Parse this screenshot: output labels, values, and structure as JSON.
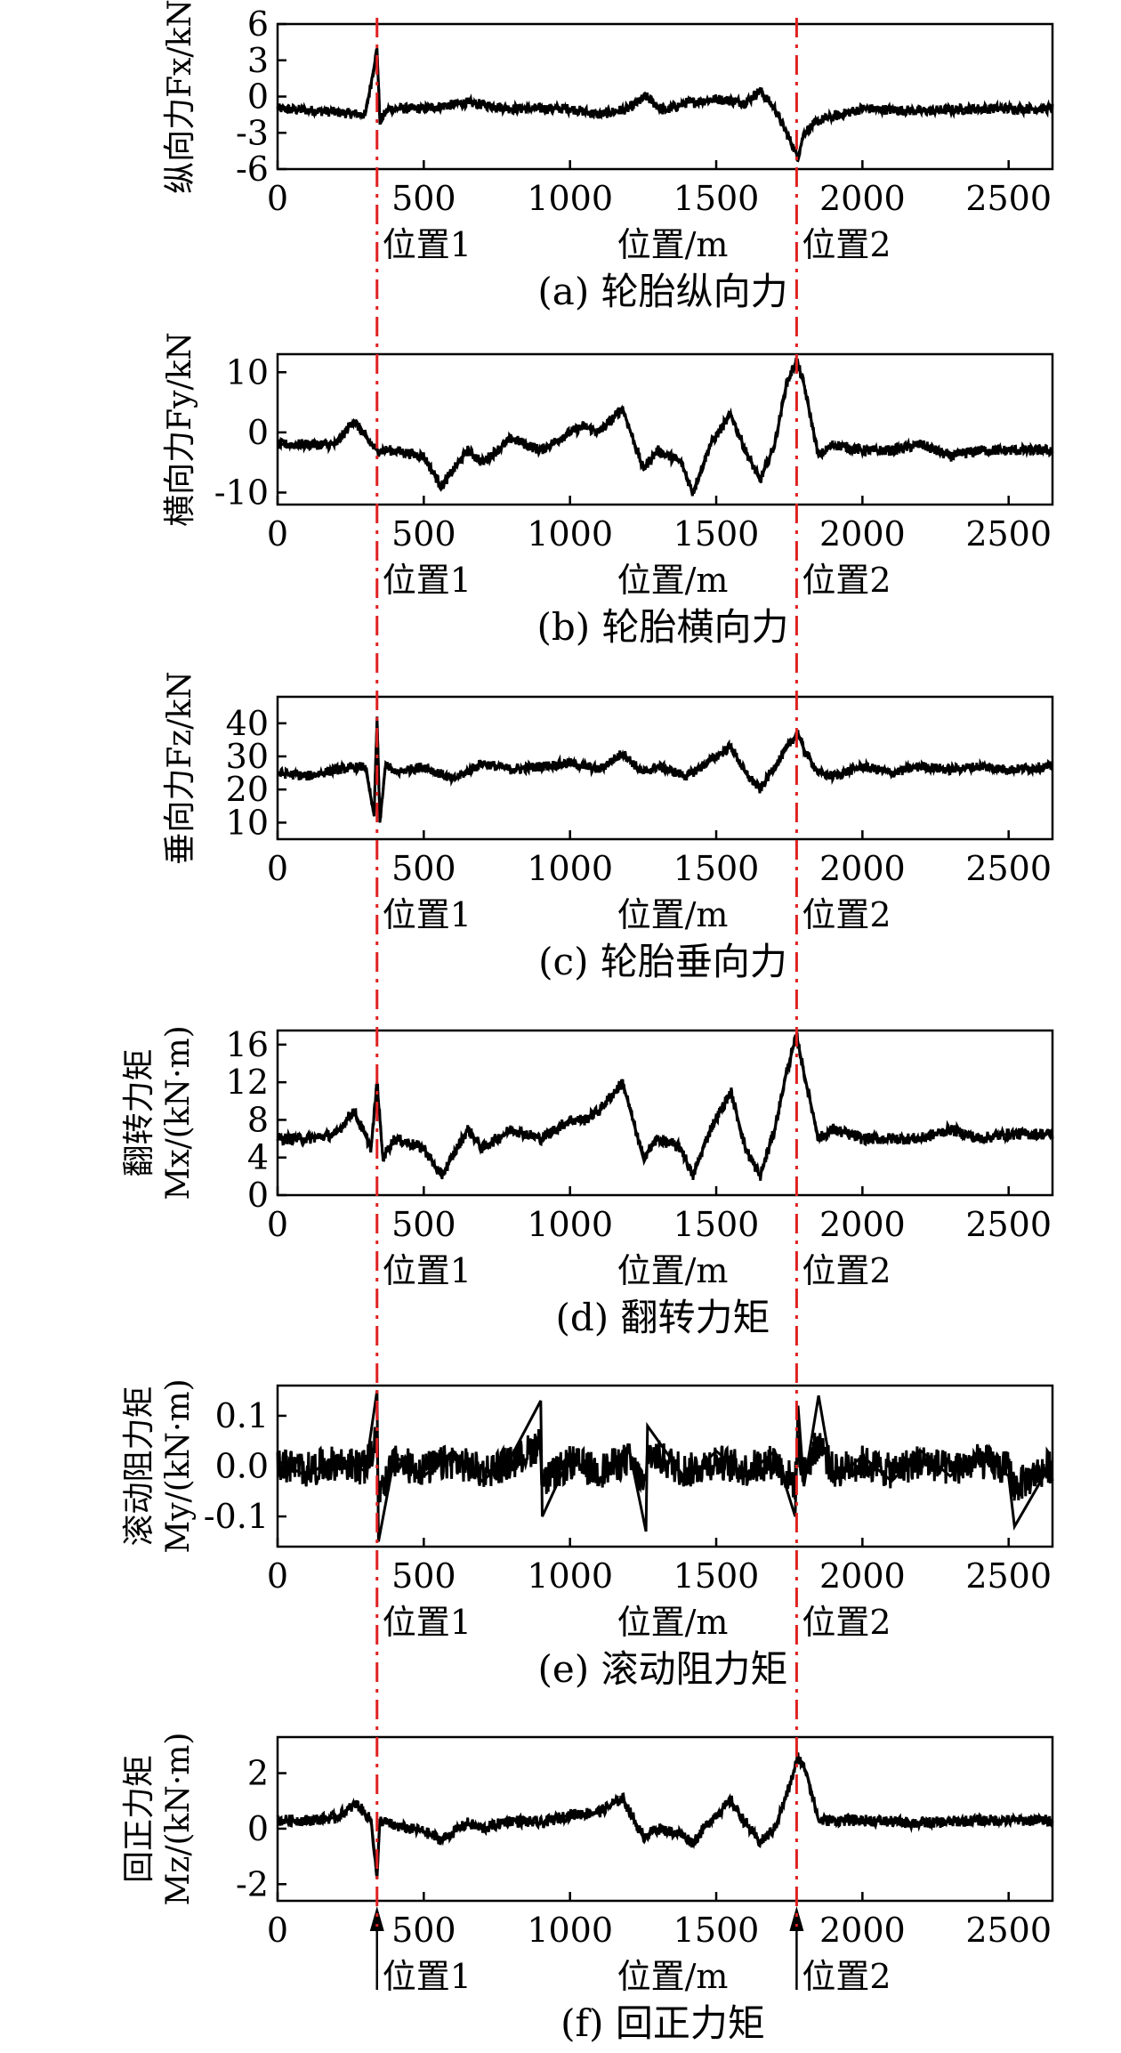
{
  "chart_data": [
    {
      "type": "line",
      "id": "a",
      "caption": "(a) 轮胎纵向力",
      "ylabel_lines": [
        "纵向力Fx/kN"
      ],
      "xlabel": "位置/m",
      "marker_labels": [
        "位置1",
        "位置2"
      ],
      "markers_x": [
        340,
        1775
      ],
      "xlim": [
        0,
        2650
      ],
      "ylim": [
        -6,
        6
      ],
      "xticks": [
        0,
        500,
        1000,
        1500,
        2000,
        2500
      ],
      "yticks": [
        6,
        3,
        0,
        -3,
        -6
      ],
      "series": [
        {
          "x": [
            0,
            150,
            300,
            330,
            340,
            350,
            380,
            500,
            650,
            800,
            900,
            1000,
            1100,
            1200,
            1260,
            1320,
            1400,
            1500,
            1600,
            1650,
            1700,
            1760,
            1780,
            1800,
            1850,
            2000,
            2200,
            2400,
            2650
          ],
          "y": [
            -1,
            -1.2,
            -1.5,
            2.5,
            4,
            -2,
            -1,
            -1,
            -0.5,
            -1,
            -1,
            -1,
            -1.5,
            -1,
            0,
            -1.2,
            -0.5,
            -0.2,
            -0.5,
            0.5,
            -1,
            -4,
            -5,
            -3,
            -2,
            -1,
            -1.2,
            -1,
            -1
          ]
        }
      ]
    },
    {
      "type": "line",
      "id": "b",
      "caption": "(b) 轮胎横向力",
      "ylabel_lines": [
        "横向力Fy/kN"
      ],
      "xlabel": "位置/m",
      "marker_labels": [
        "位置1",
        "位置2"
      ],
      "markers_x": [
        340,
        1775
      ],
      "xlim": [
        0,
        2650
      ],
      "ylim": [
        -12,
        13
      ],
      "xticks": [
        0,
        500,
        1000,
        1500,
        2000,
        2500
      ],
      "yticks": [
        10,
        0,
        -10
      ],
      "series": [
        {
          "x": [
            0,
            100,
            200,
            260,
            320,
            340,
            400,
            500,
            560,
            650,
            700,
            800,
            900,
            1000,
            1050,
            1100,
            1180,
            1250,
            1300,
            1380,
            1420,
            1480,
            1550,
            1600,
            1650,
            1700,
            1740,
            1775,
            1800,
            1850,
            1900,
            2000,
            2100,
            2200,
            2300,
            2400,
            2500,
            2650
          ],
          "y": [
            -2,
            -2,
            -2,
            2,
            -2,
            -3,
            -3,
            -4,
            -9,
            -3,
            -5,
            -1,
            -3,
            0,
            1,
            0,
            4,
            -6,
            -3,
            -5,
            -10,
            -2,
            3,
            -3,
            -8,
            -2,
            8,
            12,
            8,
            -4,
            -2,
            -3,
            -3,
            -2,
            -4,
            -3,
            -3,
            -3
          ]
        }
      ]
    },
    {
      "type": "line",
      "id": "c",
      "caption": "(c) 轮胎垂向力",
      "ylabel_lines": [
        "垂向力Fz/kN"
      ],
      "xlabel": "位置/m",
      "marker_labels": [
        "位置1",
        "位置2"
      ],
      "markers_x": [
        340,
        1775
      ],
      "xlim": [
        0,
        2650
      ],
      "ylim": [
        5,
        48
      ],
      "xticks": [
        0,
        500,
        1000,
        1500,
        2000,
        2500
      ],
      "yticks": [
        40,
        30,
        20,
        10
      ],
      "series": [
        {
          "x": [
            0,
            100,
            200,
            300,
            330,
            340,
            350,
            370,
            400,
            500,
            600,
            700,
            800,
            900,
            1000,
            1100,
            1180,
            1250,
            1300,
            1400,
            1500,
            1550,
            1600,
            1650,
            1700,
            1760,
            1780,
            1800,
            1850,
            1900,
            2000,
            2100,
            2200,
            2300,
            2400,
            2500,
            2650
          ],
          "y": [
            25,
            24,
            26,
            27,
            12,
            42,
            10,
            28,
            25,
            27,
            23,
            28,
            26,
            27,
            28,
            26,
            31,
            25,
            27,
            24,
            30,
            33,
            25,
            20,
            27,
            35,
            37,
            32,
            25,
            24,
            27,
            25,
            27,
            26,
            27,
            26,
            27
          ]
        }
      ]
    },
    {
      "type": "line",
      "id": "d",
      "caption": "(d) 翻转力矩",
      "ylabel_lines": [
        "翻转力矩",
        "Mx/(kN·m)"
      ],
      "xlabel": "位置/m",
      "marker_labels": [
        "位置1",
        "位置2"
      ],
      "markers_x": [
        340,
        1775
      ],
      "xlim": [
        0,
        2650
      ],
      "ylim": [
        0,
        17.5
      ],
      "xticks": [
        0,
        500,
        1000,
        1500,
        2000,
        2500
      ],
      "yticks": [
        16,
        12,
        8,
        4,
        0
      ],
      "series": [
        {
          "x": [
            0,
            100,
            200,
            260,
            320,
            340,
            360,
            400,
            500,
            560,
            650,
            700,
            800,
            900,
            1000,
            1050,
            1100,
            1180,
            1250,
            1300,
            1380,
            1420,
            1480,
            1550,
            1600,
            1650,
            1700,
            1740,
            1775,
            1800,
            1850,
            1900,
            2000,
            2100,
            2200,
            2300,
            2400,
            2500,
            2650
          ],
          "y": [
            6,
            6,
            6.5,
            9,
            5,
            12,
            4,
            6,
            5,
            2,
            7,
            5,
            7,
            6,
            8,
            8,
            9,
            12,
            4,
            6,
            5,
            2,
            7,
            11,
            5,
            2,
            7,
            13,
            17,
            13,
            6,
            7,
            6,
            6,
            6,
            7,
            6,
            6.5,
            6.5
          ]
        }
      ]
    },
    {
      "type": "line",
      "id": "e",
      "caption": "(e) 滚动阻力矩",
      "ylabel_lines": [
        "滚动阻力矩",
        "My/(kN·m)"
      ],
      "xlabel": "位置/m",
      "marker_labels": [
        "位置1",
        "位置2"
      ],
      "markers_x": [
        340,
        1775
      ],
      "xlim": [
        0,
        2650
      ],
      "ylim": [
        -0.16,
        0.16
      ],
      "xticks": [
        0,
        500,
        1000,
        1500,
        2000,
        2500
      ],
      "yticks": [
        0.1,
        0.0,
        -0.1
      ],
      "ytick_format": "1",
      "series": [
        {
          "x": [
            0,
            100,
            200,
            300,
            340,
            345,
            400,
            500,
            600,
            700,
            800,
            900,
            905,
            1000,
            1100,
            1200,
            1260,
            1265,
            1400,
            1500,
            1600,
            1700,
            1770,
            1780,
            1800,
            1850,
            1900,
            2000,
            2100,
            2200,
            2300,
            2400,
            2500,
            2520,
            2650
          ],
          "y": [
            0.01,
            -0.02,
            0.02,
            -0.01,
            0.15,
            -0.15,
            0.02,
            -0.02,
            0.03,
            -0.03,
            0.02,
            0.13,
            -0.1,
            0.02,
            -0.03,
            0.04,
            -0.13,
            0.08,
            -0.03,
            0.03,
            -0.02,
            0.03,
            -0.1,
            0.12,
            -0.04,
            0.14,
            -0.03,
            0.02,
            -0.03,
            0.03,
            -0.02,
            0.03,
            -0.02,
            -0.12,
            0.01
          ]
        }
      ]
    },
    {
      "type": "line",
      "id": "f",
      "caption": "(f) 回正力矩",
      "ylabel_lines": [
        "回正力矩",
        "Mz/(kN·m)"
      ],
      "xlabel": "位置/m",
      "marker_labels": [
        "位置1",
        "位置2"
      ],
      "markers_x": [
        340,
        1775
      ],
      "xlim": [
        0,
        2650
      ],
      "ylim": [
        -2.6,
        3.3
      ],
      "xticks": [
        0,
        500,
        1000,
        1500,
        2000,
        2500
      ],
      "yticks": [
        2,
        0,
        -2
      ],
      "arrows": true,
      "series": [
        {
          "x": [
            0,
            100,
            200,
            270,
            320,
            340,
            350,
            400,
            500,
            560,
            650,
            700,
            800,
            900,
            1000,
            1100,
            1180,
            1250,
            1300,
            1380,
            1420,
            1480,
            1550,
            1600,
            1650,
            1700,
            1750,
            1780,
            1810,
            1850,
            1900,
            2000,
            2200,
            2400,
            2650
          ],
          "y": [
            0.3,
            0.3,
            0.4,
            0.9,
            0.3,
            -1.8,
            0.3,
            0.1,
            -0.1,
            -0.4,
            0.2,
            0.0,
            0.3,
            0.2,
            0.5,
            0.6,
            1.1,
            -0.3,
            0.0,
            -0.2,
            -0.5,
            0.3,
            1.0,
            0.2,
            -0.5,
            0.0,
            1.5,
            2.6,
            2.0,
            0.3,
            0.3,
            0.3,
            0.2,
            0.3,
            0.3
          ]
        }
      ]
    }
  ]
}
